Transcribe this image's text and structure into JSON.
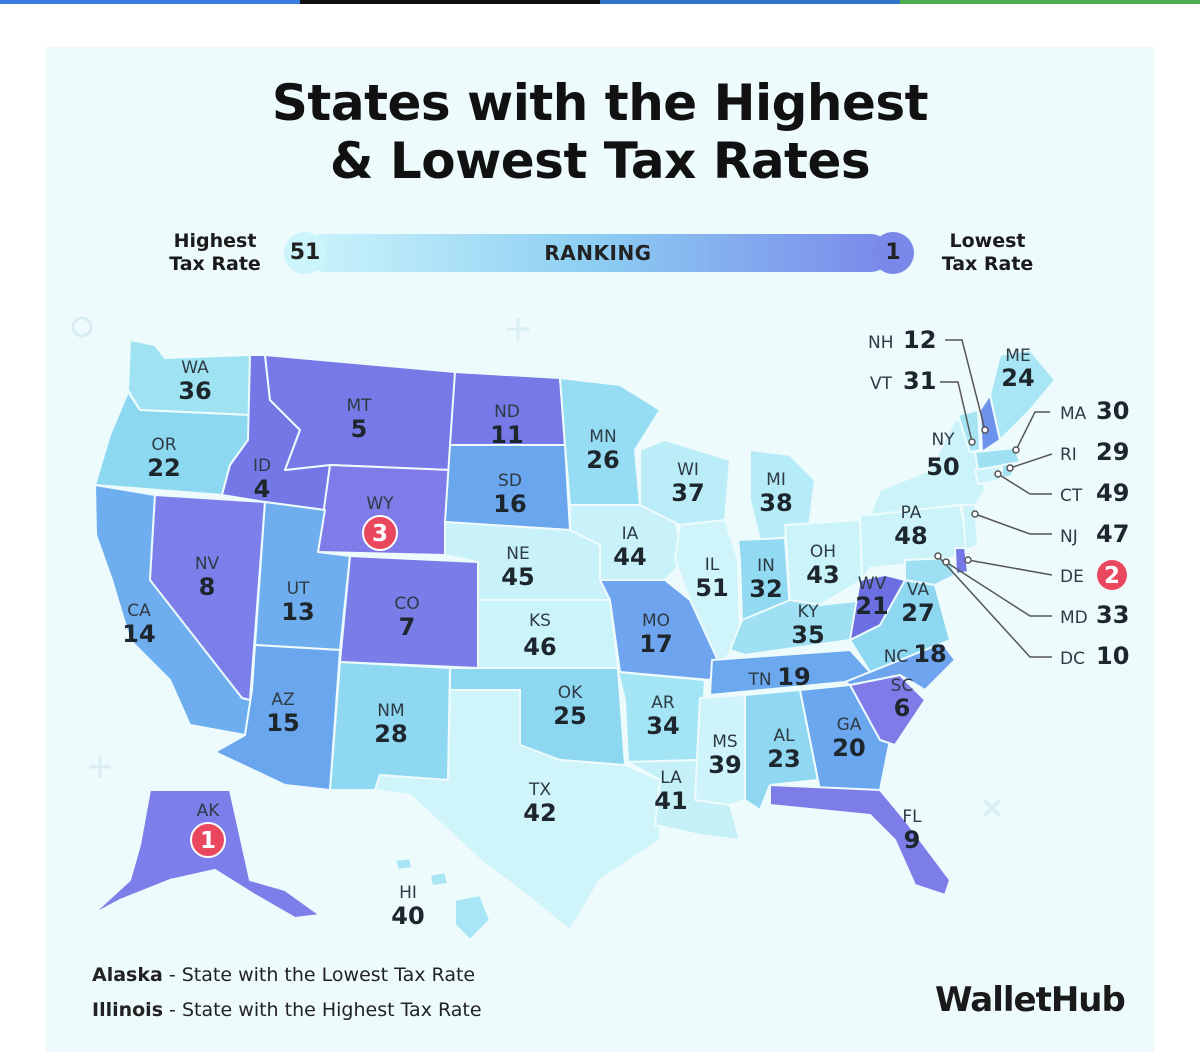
{
  "header": {
    "title_line1": "States with the Highest",
    "title_line2": "& Lowest Tax Rates"
  },
  "legend": {
    "left_label_1": "Highest",
    "left_label_2": "Tax Rate",
    "left_value": "51",
    "bar_label": "RANKING",
    "right_value": "1",
    "right_label_1": "Lowest",
    "right_label_2": "Tax Rate"
  },
  "colors": {
    "top_bar": [
      "#3a7be0",
      "#111111",
      "#2f76c9",
      "#4caf50"
    ],
    "rank_low": "#cff4fa",
    "rank_mid": "#6fb5ef",
    "rank_high": "#7c7fea",
    "highlight": "#e8475e"
  },
  "states": [
    {
      "abbr": "WA",
      "rank": "36"
    },
    {
      "abbr": "OR",
      "rank": "22"
    },
    {
      "abbr": "CA",
      "rank": "14"
    },
    {
      "abbr": "ID",
      "rank": "4"
    },
    {
      "abbr": "NV",
      "rank": "8"
    },
    {
      "abbr": "MT",
      "rank": "5"
    },
    {
      "abbr": "WY",
      "rank": "3"
    },
    {
      "abbr": "UT",
      "rank": "13"
    },
    {
      "abbr": "AZ",
      "rank": "15"
    },
    {
      "abbr": "CO",
      "rank": "7"
    },
    {
      "abbr": "NM",
      "rank": "28"
    },
    {
      "abbr": "ND",
      "rank": "11"
    },
    {
      "abbr": "SD",
      "rank": "16"
    },
    {
      "abbr": "NE",
      "rank": "45"
    },
    {
      "abbr": "KS",
      "rank": "46"
    },
    {
      "abbr": "OK",
      "rank": "25"
    },
    {
      "abbr": "TX",
      "rank": "42"
    },
    {
      "abbr": "MN",
      "rank": "26"
    },
    {
      "abbr": "IA",
      "rank": "44"
    },
    {
      "abbr": "MO",
      "rank": "17"
    },
    {
      "abbr": "AR",
      "rank": "34"
    },
    {
      "abbr": "LA",
      "rank": "41"
    },
    {
      "abbr": "WI",
      "rank": "37"
    },
    {
      "abbr": "IL",
      "rank": "51"
    },
    {
      "abbr": "MI",
      "rank": "38"
    },
    {
      "abbr": "IN",
      "rank": "32"
    },
    {
      "abbr": "OH",
      "rank": "43"
    },
    {
      "abbr": "KY",
      "rank": "35"
    },
    {
      "abbr": "TN",
      "rank": "19"
    },
    {
      "abbr": "MS",
      "rank": "39"
    },
    {
      "abbr": "AL",
      "rank": "23"
    },
    {
      "abbr": "GA",
      "rank": "20"
    },
    {
      "abbr": "FL",
      "rank": "9"
    },
    {
      "abbr": "SC",
      "rank": "6"
    },
    {
      "abbr": "NC",
      "rank": "18"
    },
    {
      "abbr": "VA",
      "rank": "27"
    },
    {
      "abbr": "WV",
      "rank": "21"
    },
    {
      "abbr": "PA",
      "rank": "48"
    },
    {
      "abbr": "NY",
      "rank": "50"
    },
    {
      "abbr": "ME",
      "rank": "24"
    },
    {
      "abbr": "AK",
      "rank": "1"
    },
    {
      "abbr": "HI",
      "rank": "40"
    }
  ],
  "callouts": [
    {
      "abbr": "NH",
      "rank": "12"
    },
    {
      "abbr": "VT",
      "rank": "31"
    },
    {
      "abbr": "MA",
      "rank": "30"
    },
    {
      "abbr": "RI",
      "rank": "29"
    },
    {
      "abbr": "CT",
      "rank": "49"
    },
    {
      "abbr": "NJ",
      "rank": "47"
    },
    {
      "abbr": "DE",
      "rank": "2"
    },
    {
      "abbr": "MD",
      "rank": "33"
    },
    {
      "abbr": "DC",
      "rank": "10"
    }
  ],
  "footer": {
    "line1_state": "Alaska",
    "line1_text": " - State with the Lowest Tax Rate",
    "line2_state": "Illinois",
    "line2_text": " - State with the Highest Tax Rate",
    "brand": "WalletHub"
  }
}
